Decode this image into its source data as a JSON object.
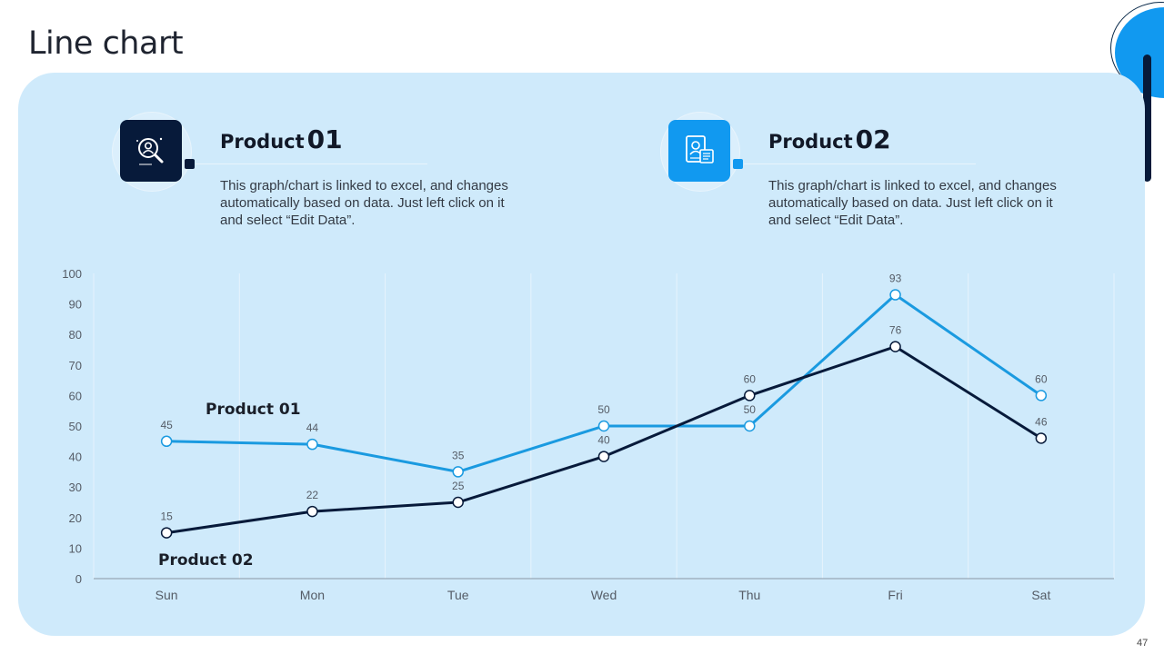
{
  "slide": {
    "title": "Line chart",
    "page_number": "47"
  },
  "products": [
    {
      "label": "Product",
      "number": "01",
      "description": "This graph/chart is linked to excel, and changes automatically based on data. Just left click on it and select “Edit Data”.",
      "icon": "person-search-icon",
      "color": "#071a3a"
    },
    {
      "label": "Product",
      "number": "02",
      "description": "This graph/chart is linked to excel, and changes automatically based on data. Just left click on it and select “Edit Data”.",
      "icon": "profile-document-icon",
      "color": "#1199f0"
    }
  ],
  "colors": {
    "panel": "#cfeafb",
    "accent_blue": "#1199f0",
    "dark_navy": "#071a3a",
    "series_light": "#1a9ae0",
    "series_dark": "#071a3a"
  },
  "chart_data": {
    "type": "line",
    "categories": [
      "Sun",
      "Mon",
      "Tue",
      "Wed",
      "Thu",
      "Fri",
      "Sat"
    ],
    "series": [
      {
        "name": "Product 01",
        "values": [
          45,
          44,
          35,
          50,
          50,
          93,
          60
        ],
        "color": "#1a9ae0"
      },
      {
        "name": "Product 02",
        "values": [
          15,
          22,
          25,
          40,
          60,
          76,
          46
        ],
        "color": "#071a3a"
      }
    ],
    "ylim": [
      0,
      100
    ],
    "yticks": [
      0,
      10,
      20,
      30,
      40,
      50,
      60,
      70,
      80,
      90,
      100
    ],
    "xlabel": "",
    "ylabel": "",
    "grid": "vertical",
    "data_labels": true,
    "legend": "inline-labels"
  }
}
